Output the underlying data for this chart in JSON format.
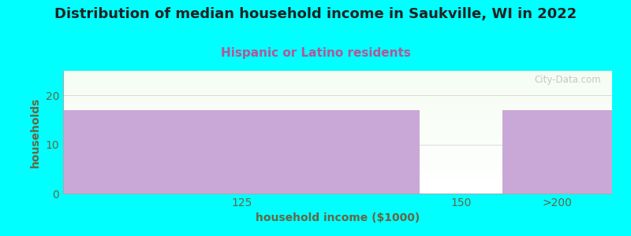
{
  "title": "Distribution of median household income in Saukville, WI in 2022",
  "subtitle": "Hispanic or Latino residents",
  "xlabel": "household income ($1000)",
  "ylabel": "households",
  "categories": [
    "125",
    "150",
    ">200"
  ],
  "values": [
    17,
    0,
    17
  ],
  "bar_color": "#c9a8d8",
  "background_color": "#00ffff",
  "title_color": "#222222",
  "subtitle_color": "#b05898",
  "axis_label_color": "#666644",
  "tick_color": "#666644",
  "ylim": [
    0,
    25
  ],
  "yticks": [
    0,
    10,
    20
  ],
  "title_fontsize": 13,
  "subtitle_fontsize": 11,
  "label_fontsize": 10,
  "watermark": "City-Data.com"
}
